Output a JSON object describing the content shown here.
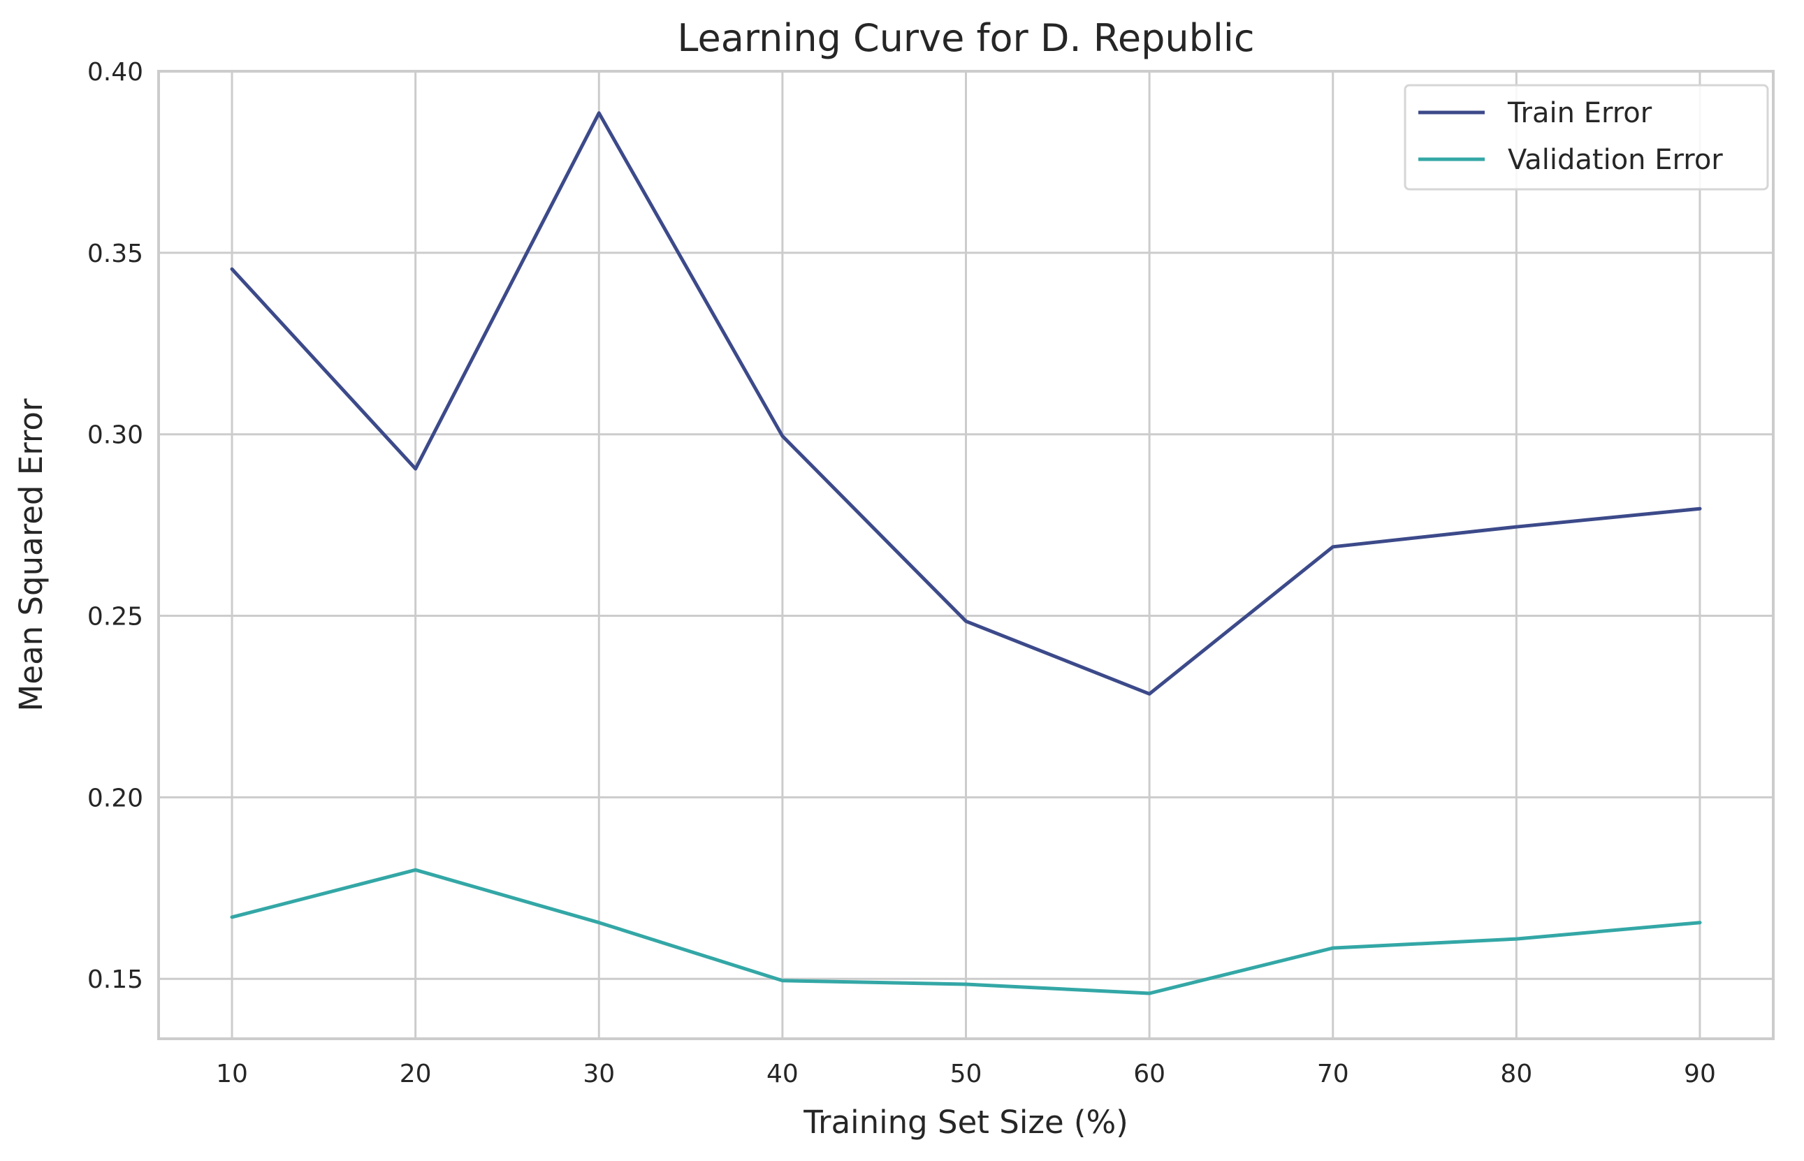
{
  "chart_data": {
    "type": "line",
    "title": "Learning Curve for D. Republic",
    "xlabel": "Training Set Size (%)",
    "ylabel": "Mean Squared Error",
    "x": [
      10,
      20,
      30,
      40,
      50,
      60,
      70,
      80,
      90
    ],
    "x_ticks": [
      "10",
      "20",
      "30",
      "40",
      "50",
      "60",
      "70",
      "80",
      "90"
    ],
    "y_ticks": [
      "0.15",
      "0.20",
      "0.25",
      "0.30",
      "0.35",
      "0.40"
    ],
    "xlim": [
      6,
      94
    ],
    "ylim": [
      0.1335,
      0.4
    ],
    "grid": true,
    "legend_position": "top-right",
    "series": [
      {
        "name": "Train Error",
        "color": "#3c4a8a",
        "values": [
          0.3455,
          0.2905,
          0.3885,
          0.2995,
          0.2485,
          0.2285,
          0.269,
          0.2745,
          0.2795
        ]
      },
      {
        "name": "Validation Error",
        "color": "#33a7a6",
        "values": [
          0.167,
          0.18,
          0.1655,
          0.1495,
          0.1485,
          0.146,
          0.1585,
          0.161,
          0.1655
        ]
      }
    ]
  }
}
